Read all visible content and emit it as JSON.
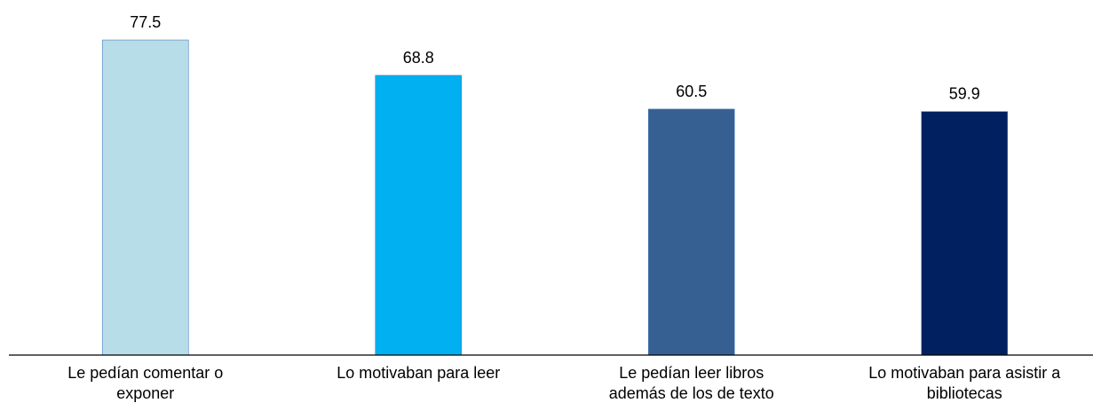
{
  "chart_data": {
    "type": "bar",
    "categories": [
      "Le pedían comentar o\nexponer",
      "Lo motivaban para leer",
      "Le pedían leer  libros\nademás de los de texto",
      "Lo motivaban para asistir a\nbibliotecas"
    ],
    "values": [
      77.5,
      68.8,
      60.5,
      59.9
    ],
    "colors": [
      "#b7dde8",
      "#00b0f0",
      "#376092",
      "#002060"
    ],
    "ylim": [
      0,
      80
    ]
  }
}
